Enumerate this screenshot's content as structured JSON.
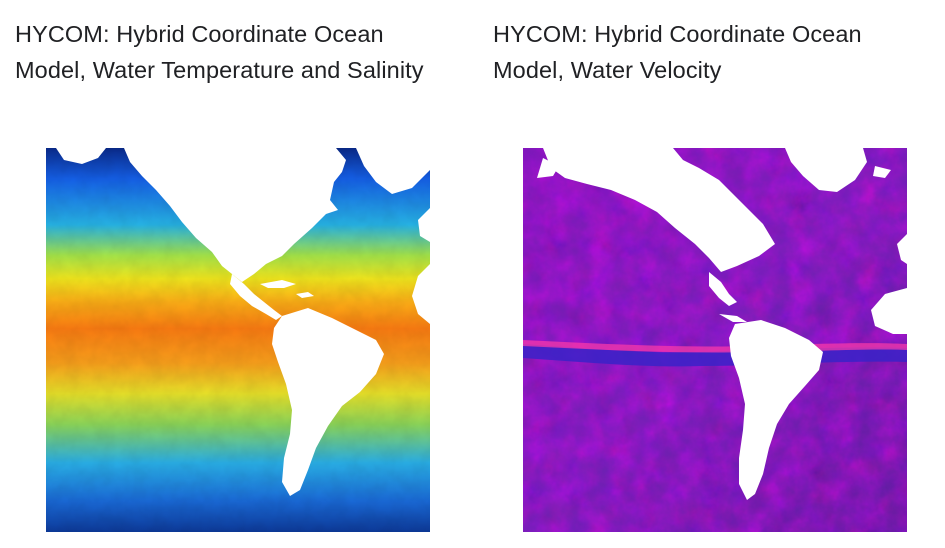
{
  "datasets": [
    {
      "title": "HYCOM: Hybrid Coordinate Ocean Model, Water Temperature and Salinity",
      "thumbnail_icon": "ocean-temperature-map-thumbnail"
    },
    {
      "title": "HYCOM: Hybrid Coordinate Ocean Model, Water Velocity",
      "thumbnail_icon": "ocean-velocity-map-thumbnail"
    }
  ],
  "colors": {
    "land": "#ffffff",
    "temperature_gradient": [
      "#0a2a8a",
      "#1560e8",
      "#27b4e6",
      "#a6e64a",
      "#f2e81e",
      "#fdb017",
      "#fb7c12",
      "#f7a51a",
      "#c6e83a",
      "#2ab0e8",
      "#0d3a9a"
    ],
    "velocity_base": "#6a1fa8",
    "velocity_highlight": "#ff2a9a",
    "velocity_shadow": "#3420b8"
  }
}
